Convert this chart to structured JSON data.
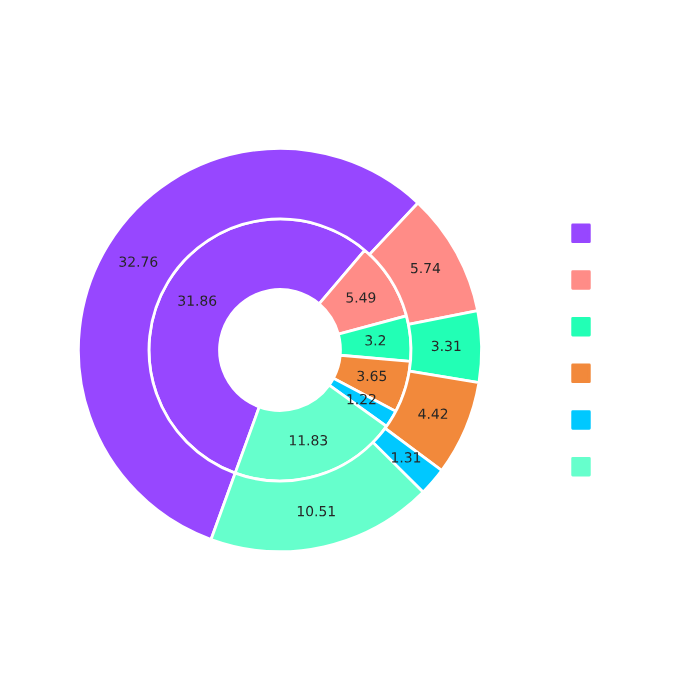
{
  "chart_data": {
    "type": "donut",
    "categories": [
      null,
      null,
      null,
      null,
      null,
      null
    ],
    "colors": [
      "#9747ff",
      "#ff8c87",
      "#22ffb5",
      "#f2893b",
      "#00c8ff",
      "#66ffcc"
    ],
    "series": [
      {
        "values": [
          31.86,
          5.49,
          3.2,
          3.65,
          1.22,
          11.83
        ]
      },
      {
        "values": [
          32.76,
          5.74,
          3.31,
          4.42,
          1.31,
          10.51
        ]
      }
    ],
    "data_labels": true
  }
}
